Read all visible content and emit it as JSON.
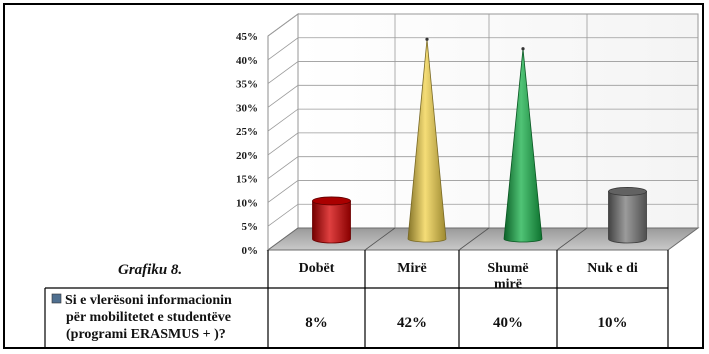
{
  "caption": "Grafiku 8.",
  "chart_data": {
    "type": "bar",
    "shape_3d": [
      "cylinder",
      "cone",
      "cone",
      "cylinder"
    ],
    "categories": [
      "Dobët",
      "Mirë",
      "Shumë mirë",
      "Nuk e di"
    ],
    "series": [
      {
        "name": "Si e vlerësoni informacionin për mobilitetet e studentëve (programi ERASMUS + )?",
        "name_lines": [
          "Si e vlerësoni informacionin",
          "për mobilitetet e studentëve",
          "(programi ERASMUS + )?"
        ],
        "values": [
          8,
          42,
          40,
          10
        ],
        "value_labels": [
          "8%",
          "42%",
          "40%",
          "10%"
        ]
      }
    ],
    "category_label_lines": [
      [
        "Dobët"
      ],
      [
        "Mirë"
      ],
      [
        "Shumë",
        "mirë"
      ],
      [
        "Nuk e di"
      ]
    ],
    "ylim": [
      0,
      45
    ],
    "yticks": [
      0,
      5,
      10,
      15,
      20,
      25,
      30,
      35,
      40,
      45
    ],
    "ytick_labels": [
      "0%",
      "5%",
      "10%",
      "15%",
      "20%",
      "25%",
      "30%",
      "35%",
      "40%",
      "45%"
    ],
    "grid": true,
    "data_table": true,
    "colors": [
      "#d40000",
      "#f2d24a",
      "#16b048",
      "#7a7a7a"
    ],
    "legend_key_color": "#4f6f8f"
  }
}
